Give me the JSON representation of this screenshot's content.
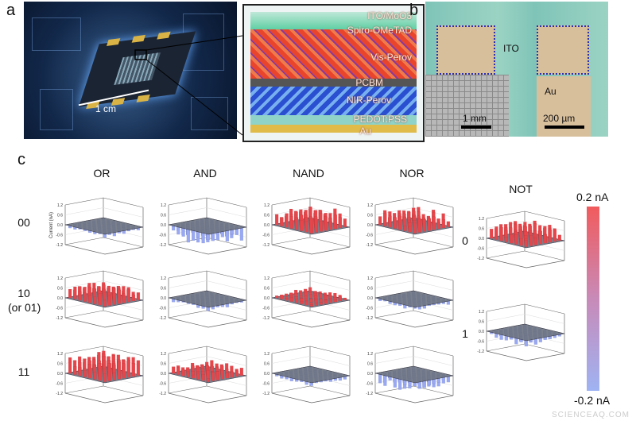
{
  "panel_labels": {
    "a": "a",
    "b": "b",
    "c": "c"
  },
  "panel_a": {
    "scale_label": "1 cm",
    "layers": [
      "ITO/MoO3",
      "Spiro-OMeTAD",
      "Vis-Perov",
      "PCBM",
      "NIR-Perov",
      "PEDOT:PSS",
      "Au"
    ]
  },
  "panel_b": {
    "ito_label": "ITO",
    "au_label": "Au",
    "scale_left": "1 mm",
    "scale_right": "200 µm"
  },
  "panel_c": {
    "columns": [
      "OR",
      "AND",
      "NAND",
      "NOR",
      "NOT"
    ],
    "rows": [
      "00",
      "10\n(or 01)",
      "11"
    ],
    "not_rows": [
      "0",
      "1"
    ],
    "z_axis_label": "Current (nA)",
    "z_ticks": [
      "1.2",
      "0.6",
      "0.0",
      "-0.6",
      "-1.2"
    ],
    "colorbar": {
      "max_label": "0.2 nA",
      "min_label": "-0.2 nA",
      "max_color": "#f15b5d",
      "min_color": "#9fb3f3"
    }
  },
  "chart_data": {
    "type": "3d-bar",
    "zlabel": "Current (nA)",
    "zlim": [
      -1.2,
      1.2
    ],
    "grid": "8x8 pixel array",
    "positive_color": "#e8454a",
    "negative_color": "#98a8f2",
    "panels": [
      {
        "gate": "OR",
        "input": "00",
        "mean_current_nA": -0.2
      },
      {
        "gate": "OR",
        "input": "10",
        "mean_current_nA": 0.6
      },
      {
        "gate": "OR",
        "input": "11",
        "mean_current_nA": 0.8
      },
      {
        "gate": "AND",
        "input": "00",
        "mean_current_nA": -0.6
      },
      {
        "gate": "AND",
        "input": "10",
        "mean_current_nA": -0.2
      },
      {
        "gate": "AND",
        "input": "11",
        "mean_current_nA": 0.4
      },
      {
        "gate": "NAND",
        "input": "00",
        "mean_current_nA": 0.7
      },
      {
        "gate": "NAND",
        "input": "10",
        "mean_current_nA": 0.2
      },
      {
        "gate": "NAND",
        "input": "11",
        "mean_current_nA": -0.2
      },
      {
        "gate": "NOR",
        "input": "00",
        "mean_current_nA": 0.6
      },
      {
        "gate": "NOR",
        "input": "10",
        "mean_current_nA": -0.2
      },
      {
        "gate": "NOR",
        "input": "11",
        "mean_current_nA": -0.5
      },
      {
        "gate": "NOT",
        "input": "0",
        "mean_current_nA": 0.6
      },
      {
        "gate": "NOT",
        "input": "1",
        "mean_current_nA": -0.3
      }
    ]
  },
  "watermark": "SCIENCEAQ.COM"
}
